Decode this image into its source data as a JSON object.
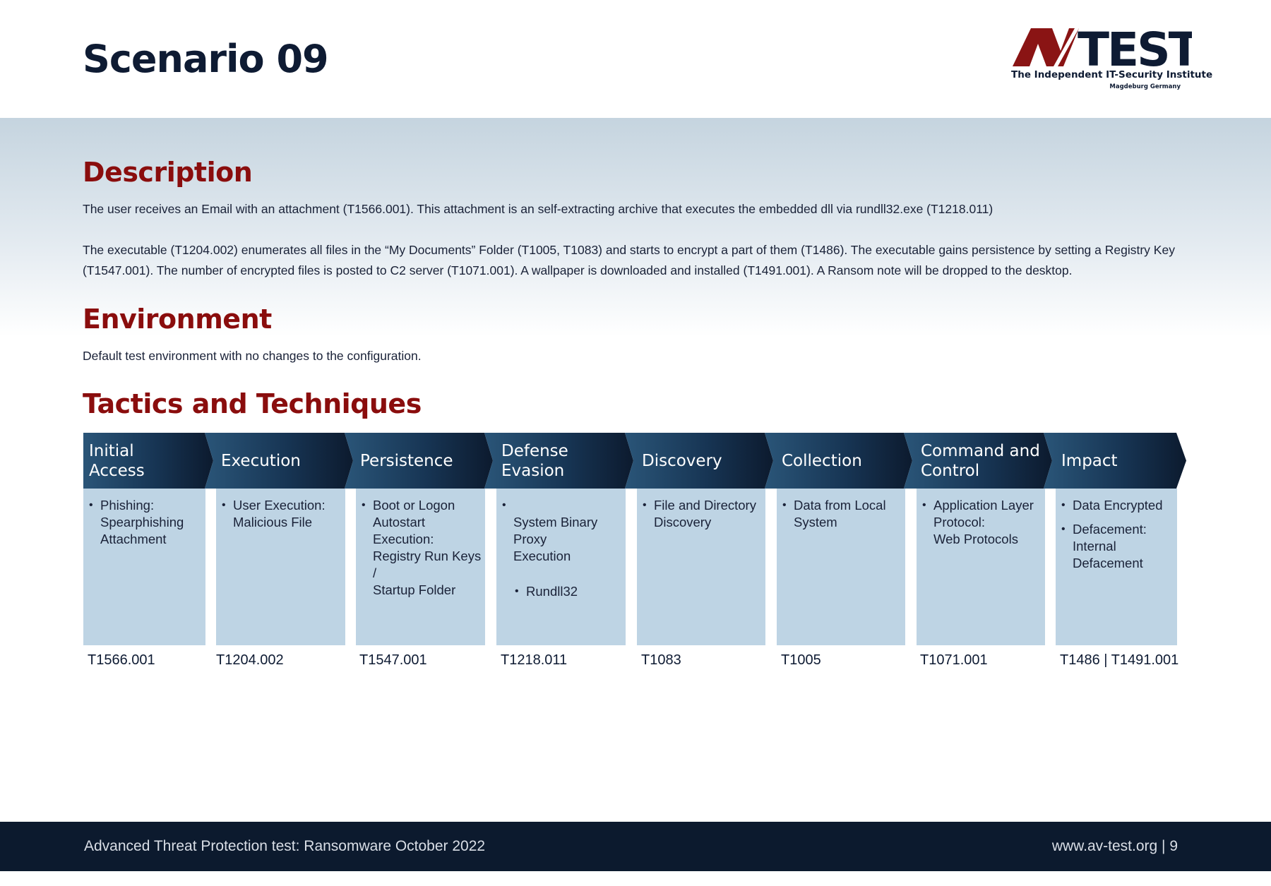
{
  "header": {
    "title": "Scenario 09",
    "logo": {
      "text": "AV-TEST",
      "tagline": "The Independent IT-Security Institute",
      "location": "Magdeburg Germany"
    }
  },
  "description": {
    "heading": "Description",
    "paragraphs": [
      "The user receives an Email with an attachment (T1566.001). This attachment is an self-extracting archive that executes the embedded dll via rundll32.exe (T1218.011)",
      "The executable (T1204.002) enumerates all files in the “My Documents” Folder (T1005, T1083) and starts to encrypt a part of them (T1486). The executable gains persistence by setting a Registry Key (T1547.001). The number of encrypted files is posted to C2 server (T1071.001). A wallpaper is downloaded and installed (T1491.001). A Ransom note will be dropped to the desktop."
    ]
  },
  "environment": {
    "heading": "Environment",
    "text": "Default test environment with no changes to the configuration."
  },
  "tactics": {
    "heading": "Tactics and Techniques",
    "items": [
      {
        "name": "Initial\nAccess",
        "techniques": [
          "Phishing:\nSpearphishing\nAttachment"
        ],
        "sub": "",
        "ids": "T1566.001"
      },
      {
        "name": "Execution",
        "techniques": [
          "User Execution:\nMalicious File"
        ],
        "sub": "",
        "ids": "T1204.002"
      },
      {
        "name": "Persistence",
        "techniques": [
          "Boot or Logon\nAutostart Execution:\nRegistry Run Keys /\nStartup Folder"
        ],
        "sub": "",
        "ids": "T1547.001"
      },
      {
        "name": "Defense\nEvasion",
        "techniques": [
          "System Binary Proxy\nExecution"
        ],
        "sub": "Rundll32",
        "ids": "T1218.011"
      },
      {
        "name": "Discovery",
        "techniques": [
          "File and Directory\nDiscovery"
        ],
        "sub": "",
        "ids": "T1083"
      },
      {
        "name": "Collection",
        "techniques": [
          "Data from Local\nSystem"
        ],
        "sub": "",
        "ids": "T1005"
      },
      {
        "name": "Command and\nControl",
        "techniques": [
          "Application Layer\nProtocol:\nWeb Protocols"
        ],
        "sub": "",
        "ids": "T1071.001"
      },
      {
        "name": "Impact",
        "techniques": [
          "Data Encrypted",
          "Defacement:\nInternal\nDefacement"
        ],
        "sub": "",
        "ids": "T1486 | T1491.001"
      }
    ]
  },
  "footer": {
    "left": "Advanced Threat Protection test: Ransomware October 2022",
    "right": "www.av-test.org | 9"
  },
  "colors": {
    "heading_red": "#8a0d0d",
    "navy": "#0c1a2e",
    "box_blue": "#bed4e4"
  }
}
